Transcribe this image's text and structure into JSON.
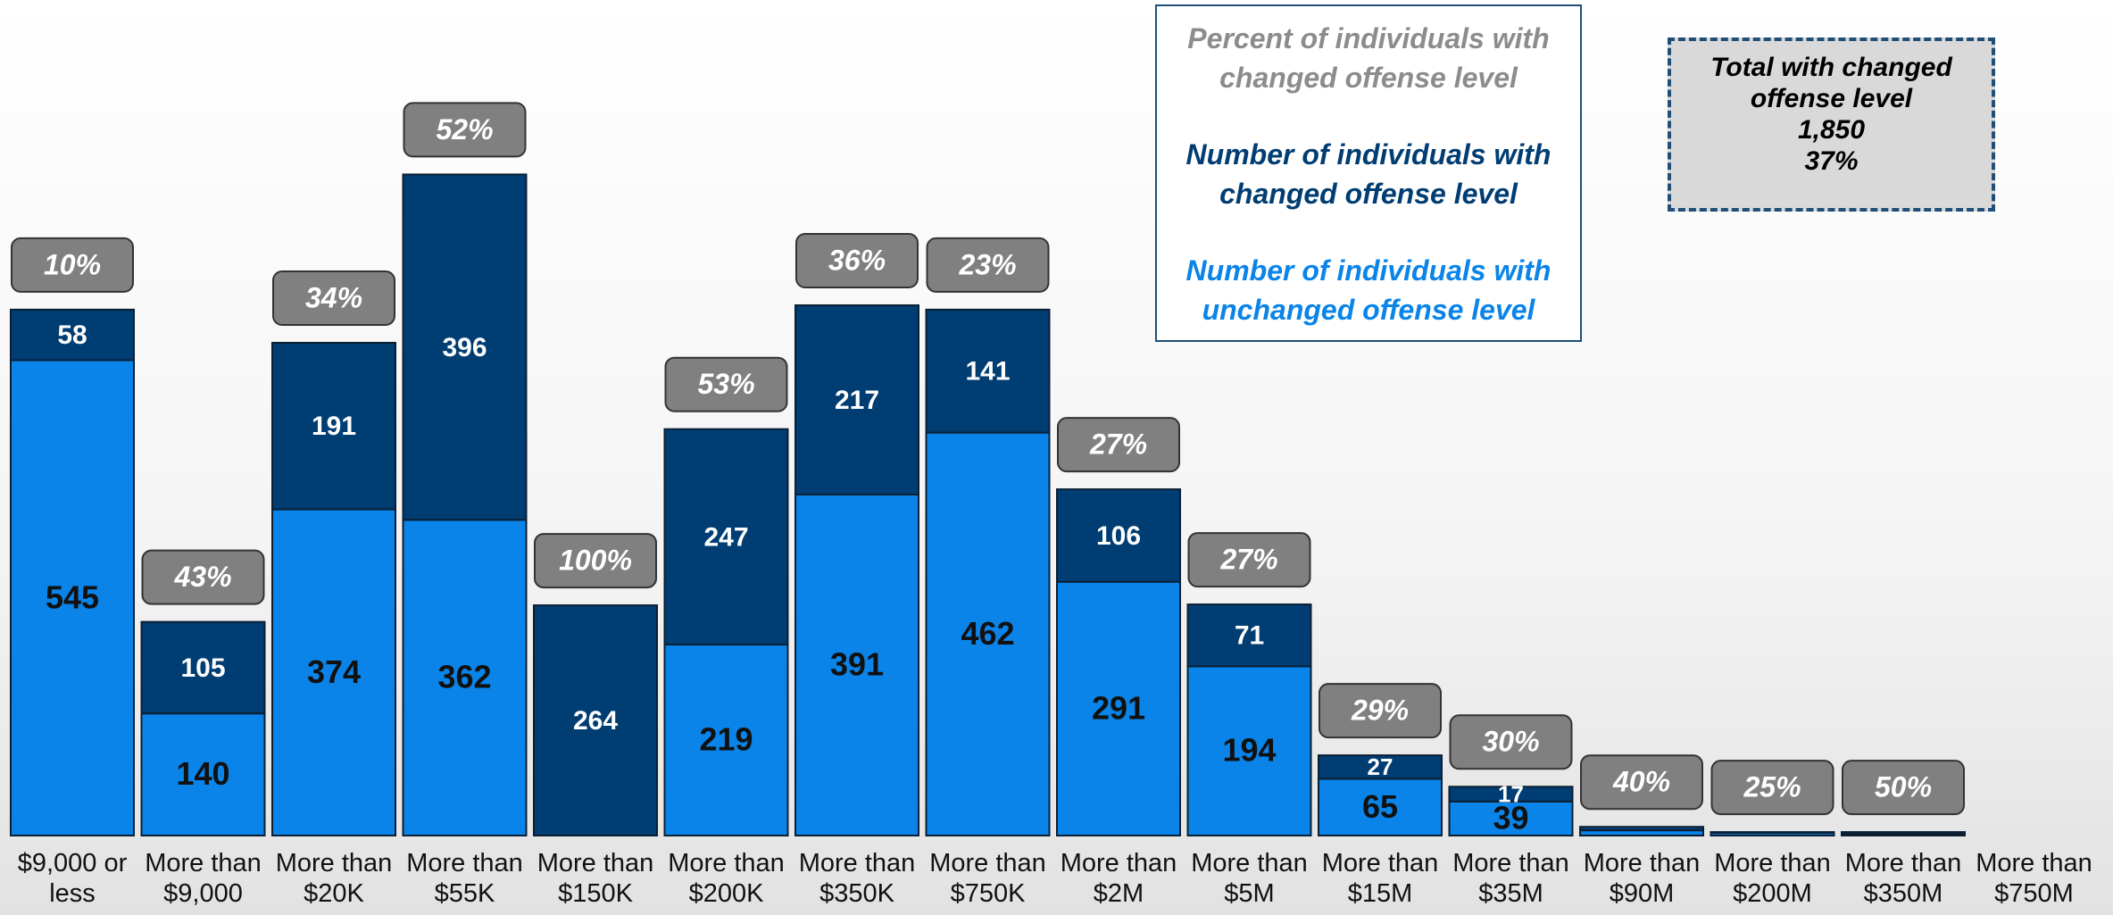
{
  "chart_data": {
    "type": "stacked_bar",
    "categories": [
      "$9,000 or less",
      "More than $9,000",
      "More than $20K",
      "More than $55K",
      "More than $150K",
      "More than $200K",
      "More than $350K",
      "More than $750K",
      "More than $2M",
      "More than $5M",
      "More than $15M",
      "More than $35M",
      "More than $90M",
      "More than $200M",
      "More than $350M",
      "More than $750M"
    ],
    "series": [
      {
        "name": "Number of individuals with unchanged offense level",
        "color": "#0a84e8",
        "values": [
          545,
          140,
          374,
          362,
          0,
          219,
          391,
          462,
          291,
          194,
          65,
          39,
          6,
          3,
          2,
          null
        ]
      },
      {
        "name": "Number of individuals with changed offense level",
        "color": "#003d73",
        "values": [
          58,
          105,
          191,
          396,
          264,
          247,
          217,
          141,
          106,
          71,
          27,
          17,
          4,
          1,
          2,
          null
        ]
      }
    ],
    "percent": {
      "name": "Percent of individuals with changed offense level",
      "color": "#808080",
      "values": [
        10,
        43,
        34,
        52,
        100,
        53,
        36,
        23,
        27,
        27,
        29,
        30,
        40,
        25,
        50,
        null
      ],
      "value_labels": [
        "10%",
        "43%",
        "34%",
        "52%",
        "100%",
        "53%",
        "36%",
        "23%",
        "27%",
        "27%",
        "29%",
        "30%",
        "40%",
        "25%",
        "50%",
        null
      ]
    },
    "annotation": {
      "text": "Total with changed offense level",
      "count": "1,850",
      "percent": "37%"
    },
    "ylim": [
      0,
      958
    ]
  }
}
